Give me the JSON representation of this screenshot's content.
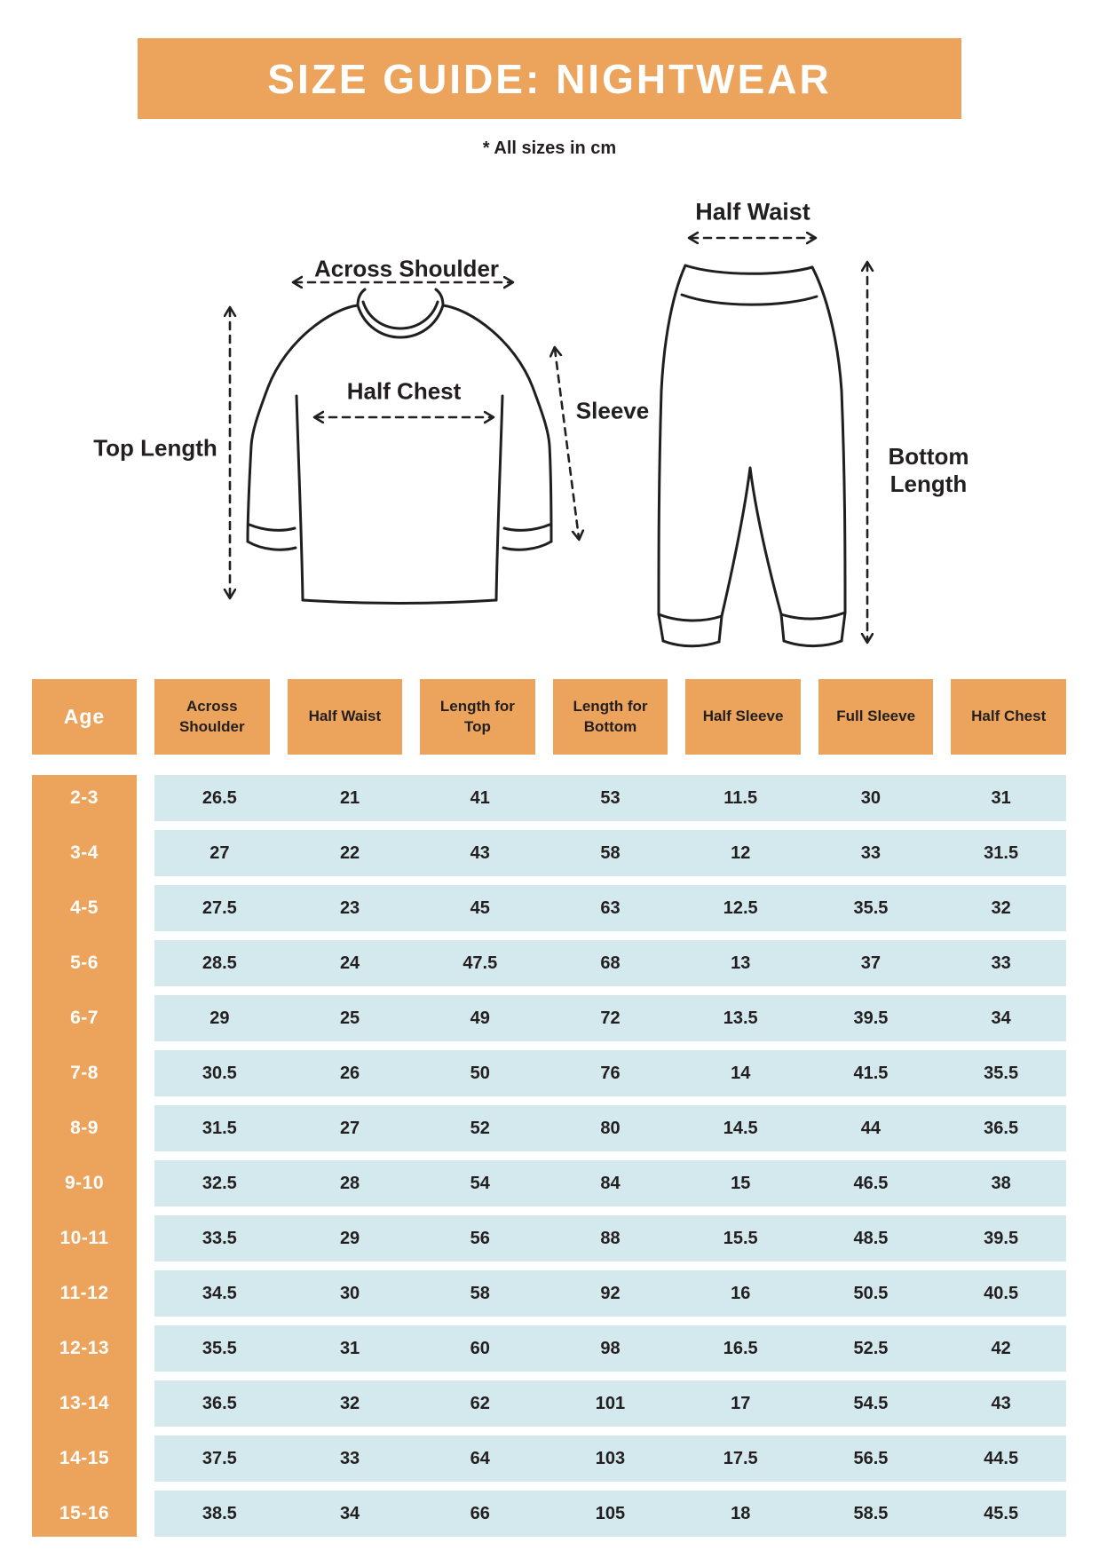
{
  "banner": {
    "title": "SIZE GUIDE: NIGHTWEAR"
  },
  "note": "* All sizes in cm",
  "colors": {
    "accent_orange": "#ECA45C",
    "row_blue": "#D4E9ED",
    "ink": "#231F20",
    "white": "#FFFFFF"
  },
  "diagrams": {
    "shirt": {
      "across_shoulder": "Across Shoulder",
      "half_chest": "Half Chest",
      "top_length": "Top Length",
      "sleeve": "Sleeve"
    },
    "pants": {
      "half_waist": "Half Waist",
      "bottom_length": "Bottom Length"
    }
  },
  "table": {
    "columns": [
      "Age",
      "Across Shoulder",
      "Half Waist",
      "Length for Top",
      "Length for Bottom",
      "Half Sleeve",
      "Full Sleeve",
      "Half Chest"
    ],
    "rows": [
      {
        "age": "2-3",
        "values": [
          "26.5",
          "21",
          "41",
          "53",
          "11.5",
          "30",
          "31"
        ]
      },
      {
        "age": "3-4",
        "values": [
          "27",
          "22",
          "43",
          "58",
          "12",
          "33",
          "31.5"
        ]
      },
      {
        "age": "4-5",
        "values": [
          "27.5",
          "23",
          "45",
          "63",
          "12.5",
          "35.5",
          "32"
        ]
      },
      {
        "age": "5-6",
        "values": [
          "28.5",
          "24",
          "47.5",
          "68",
          "13",
          "37",
          "33"
        ]
      },
      {
        "age": "6-7",
        "values": [
          "29",
          "25",
          "49",
          "72",
          "13.5",
          "39.5",
          "34"
        ]
      },
      {
        "age": "7-8",
        "values": [
          "30.5",
          "26",
          "50",
          "76",
          "14",
          "41.5",
          "35.5"
        ]
      },
      {
        "age": "8-9",
        "values": [
          "31.5",
          "27",
          "52",
          "80",
          "14.5",
          "44",
          "36.5"
        ]
      },
      {
        "age": "9-10",
        "values": [
          "32.5",
          "28",
          "54",
          "84",
          "15",
          "46.5",
          "38"
        ]
      },
      {
        "age": "10-11",
        "values": [
          "33.5",
          "29",
          "56",
          "88",
          "15.5",
          "48.5",
          "39.5"
        ]
      },
      {
        "age": "11-12",
        "values": [
          "34.5",
          "30",
          "58",
          "92",
          "16",
          "50.5",
          "40.5"
        ]
      },
      {
        "age": "12-13",
        "values": [
          "35.5",
          "31",
          "60",
          "98",
          "16.5",
          "52.5",
          "42"
        ]
      },
      {
        "age": "13-14",
        "values": [
          "36.5",
          "32",
          "62",
          "101",
          "17",
          "54.5",
          "43"
        ]
      },
      {
        "age": "14-15",
        "values": [
          "37.5",
          "33",
          "64",
          "103",
          "17.5",
          "56.5",
          "44.5"
        ]
      },
      {
        "age": "15-16",
        "values": [
          "38.5",
          "34",
          "66",
          "105",
          "18",
          "58.5",
          "45.5"
        ]
      }
    ]
  }
}
